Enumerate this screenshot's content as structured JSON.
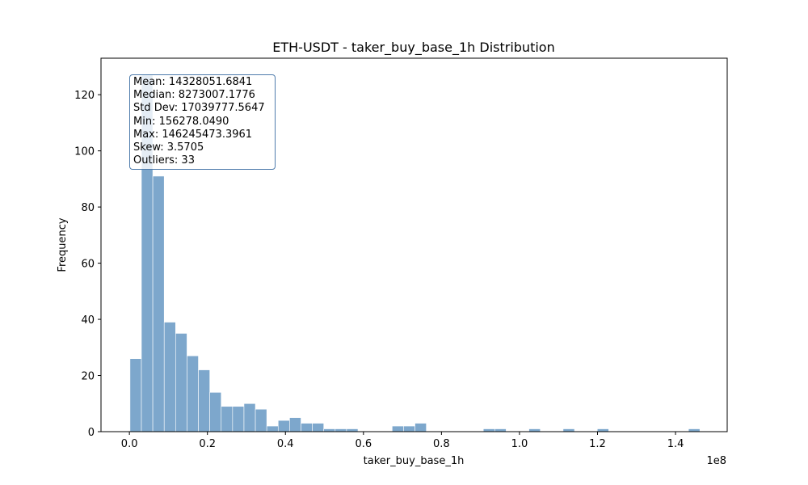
{
  "chart_data": {
    "type": "bar",
    "title": "ETH-USDT - taker_buy_base_1h Distribution",
    "xlabel": "taker_buy_base_1h",
    "ylabel": "Frequency",
    "x_offset_label": "1e8",
    "x_scale": 100000000,
    "xlim": [
      -7280000,
      153250000
    ],
    "ylim": [
      0,
      133
    ],
    "x_ticks": [
      0,
      20000000,
      40000000,
      60000000,
      80000000,
      100000000,
      120000000,
      140000000
    ],
    "x_tick_labels": [
      "0.0",
      "0.2",
      "0.4",
      "0.6",
      "0.8",
      "1.0",
      "1.2",
      "1.4"
    ],
    "y_ticks": [
      0,
      20,
      40,
      60,
      80,
      100,
      120
    ],
    "bar_color": "#7da7cc",
    "bin_start": 156278.049,
    "bin_width": 2921823.9,
    "values": [
      26,
      127,
      91,
      39,
      35,
      27,
      22,
      14,
      9,
      9,
      10,
      8,
      2,
      4,
      5,
      3,
      3,
      1,
      1,
      1,
      0,
      0,
      0,
      2,
      2,
      3,
      0,
      0,
      0,
      0,
      0,
      1,
      1,
      0,
      0,
      1,
      0,
      0,
      1,
      0,
      0,
      1,
      0,
      0,
      0,
      0,
      0,
      0,
      0,
      1
    ],
    "stats": {
      "mean": "Mean: 14328051.6841",
      "median": "Median: 8273007.1776",
      "std": "Std Dev: 17039777.5647",
      "min": "Min: 156278.0490",
      "max": "Max: 146245473.3961",
      "skew": "Skew: 3.5705",
      "outliers": "Outliers: 33"
    },
    "stats_box_color": "#4f7cac"
  }
}
